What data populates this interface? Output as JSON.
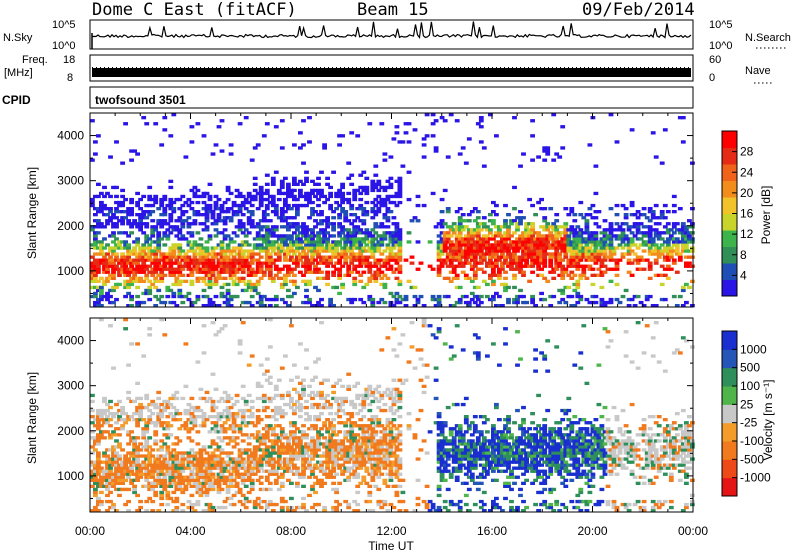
{
  "header": {
    "station": "Dome C East (fitACF)",
    "beam": "Beam 15",
    "date": "09/Feb/2014"
  },
  "strips": {
    "nsky_label": "N.Sky",
    "nsky_ticks": [
      "10^5",
      "10^0"
    ],
    "nsearch_label": "N.Search",
    "nsearch_ticks": [
      "10^5",
      "10^0"
    ],
    "freq_label_1": "Freq.",
    "freq_label_2": "[MHz]",
    "freq_ticks": [
      "18",
      "8"
    ],
    "nave_label": "Nave",
    "nave_ticks": [
      "60",
      "0"
    ],
    "cpid_label": "CPID",
    "cpid_value": "twofsound 3501"
  },
  "chart_data": [
    {
      "type": "heatmap",
      "name": "power",
      "ylabel": "Slant Range [km]",
      "xlabel": "Time UT",
      "x_ticks": [
        "00:00",
        "04:00",
        "08:00",
        "12:00",
        "16:00",
        "20:00",
        "00:00"
      ],
      "xlim_hours": [
        0,
        24
      ],
      "y_ticks": [
        "1000",
        "2000",
        "3000",
        "4000"
      ],
      "ylim": [
        200,
        4500
      ],
      "colorbar_label": "Power [dB]",
      "colorbar_ticks": [
        "4",
        "8",
        "12",
        "16",
        "20",
        "24",
        "28"
      ],
      "colorbar_colors": [
        "#2a14e6",
        "#1f4fb5",
        "#2f8f57",
        "#3cb44b",
        "#c9d42a",
        "#f2c22b",
        "#f28c1c",
        "#ef6419",
        "#e52b16",
        "#ff0000"
      ],
      "grid": false
    },
    {
      "type": "heatmap",
      "name": "velocity",
      "ylabel": "Slant Range [km]",
      "xlabel": "Time UT",
      "x_ticks": [
        "00:00",
        "04:00",
        "08:00",
        "12:00",
        "16:00",
        "20:00",
        "00:00"
      ],
      "xlim_hours": [
        0,
        24
      ],
      "y_ticks": [
        "1000",
        "2000",
        "3000",
        "4000"
      ],
      "ylim": [
        200,
        4500
      ],
      "colorbar_label": "Velocity [m s⁻¹]",
      "colorbar_ticks": [
        "1000",
        "500",
        "100",
        "25",
        "-25",
        "-100",
        "-500",
        "-1000"
      ],
      "colorbar_colors": [
        "#1a2fd0",
        "#2456b8",
        "#2f8f5a",
        "#4fb44a",
        "#c8c8c8",
        "#f39c2a",
        "#f27a1e",
        "#ee4a17",
        "#e51515"
      ],
      "grid": false
    }
  ],
  "colors": {
    "axis": "#000000",
    "background": "#ffffff"
  }
}
